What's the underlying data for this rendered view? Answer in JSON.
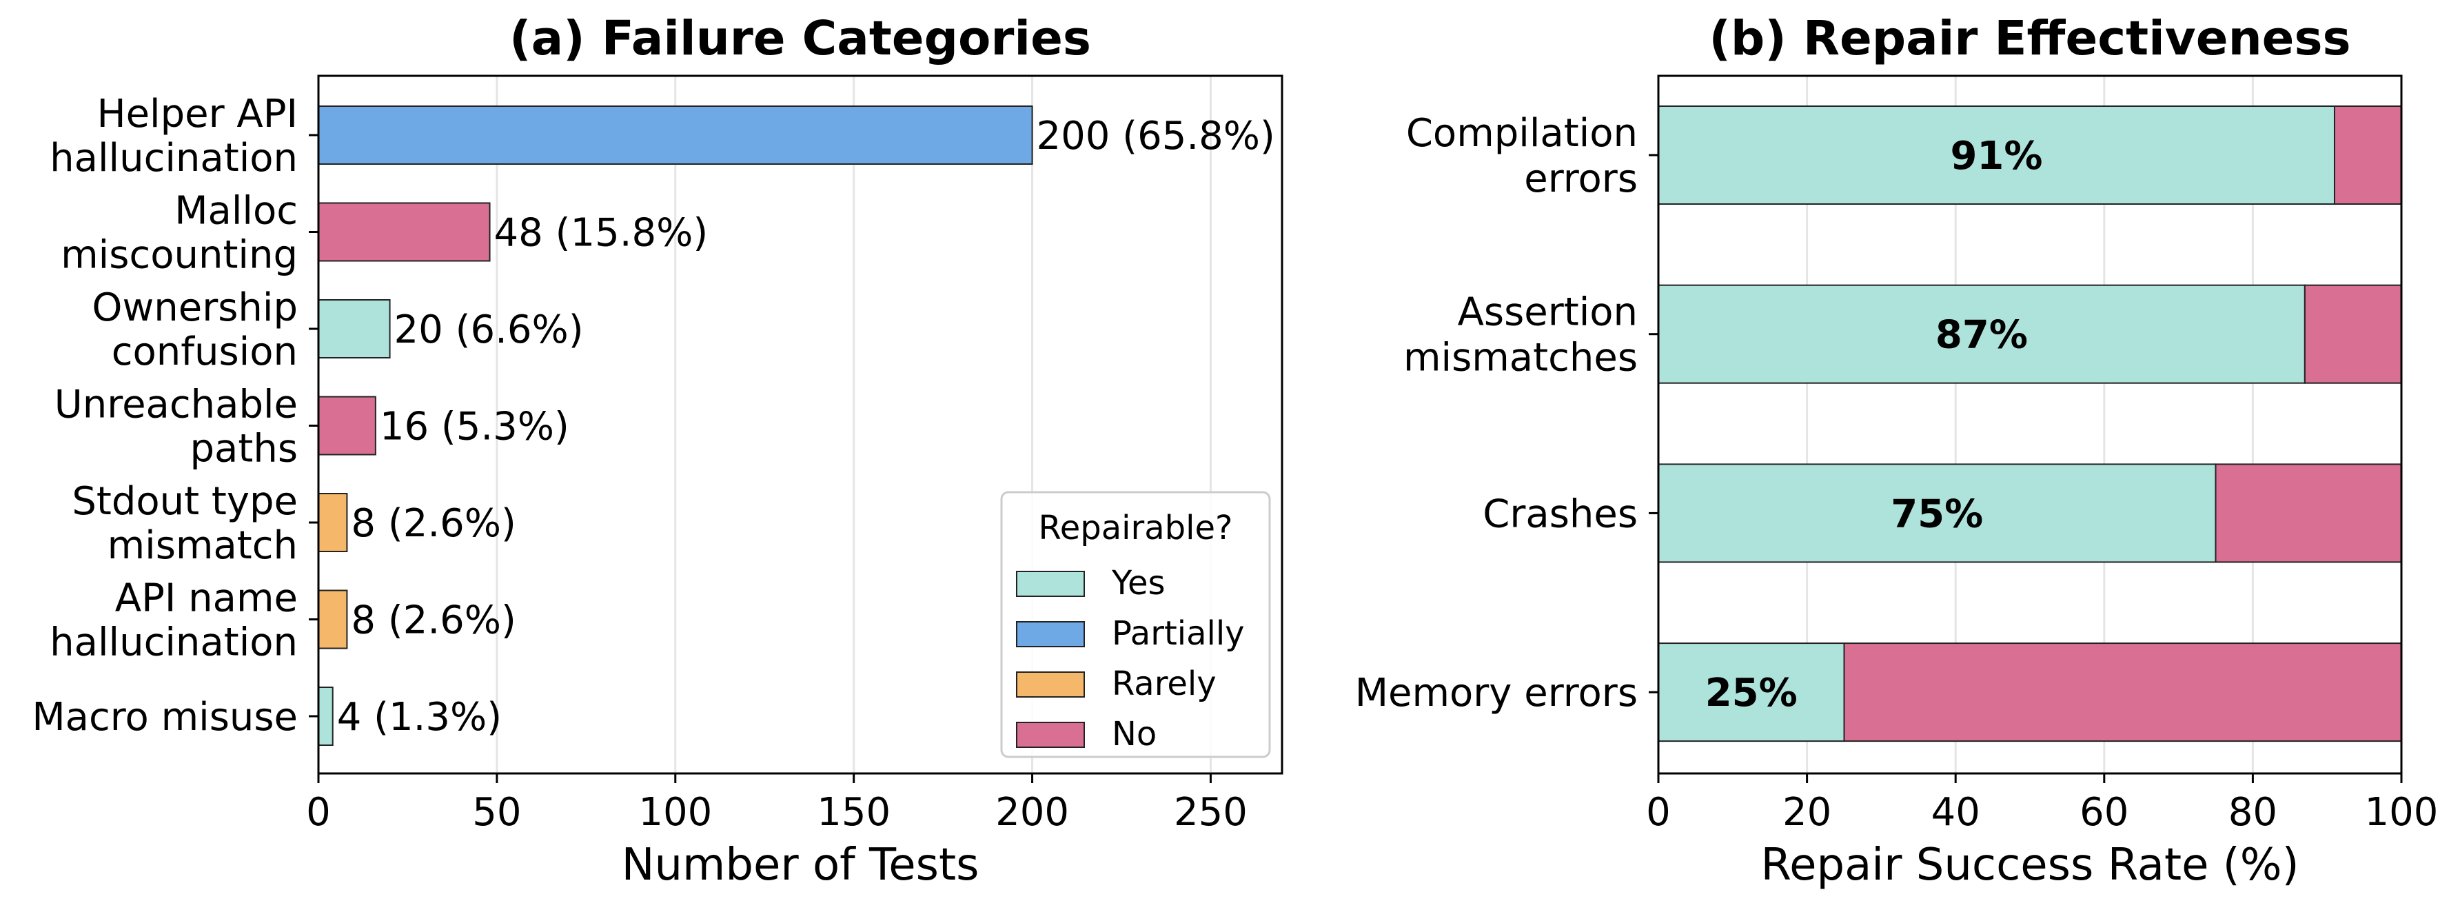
{
  "colors": {
    "Yes": "#aee3dc",
    "Partially": "#6ea8e5",
    "Rarely": "#f5b86a",
    "No": "#d97093",
    "grid": "#e5e5e5",
    "edge": "#222222"
  },
  "chart_data": [
    {
      "type": "bar",
      "orientation": "horizontal",
      "title": "(a) Failure Categories",
      "xlabel": "Number of Tests",
      "ylabel": "",
      "xlim": [
        0,
        270
      ],
      "xticks": [
        0,
        50,
        100,
        150,
        200,
        250
      ],
      "grid": "vertical",
      "categories": [
        [
          "Helper API",
          "hallucination"
        ],
        [
          "Malloc",
          "miscounting"
        ],
        [
          "Ownership",
          "confusion"
        ],
        [
          "Unreachable",
          "paths"
        ],
        [
          "Stdout type",
          "mismatch"
        ],
        [
          "API name",
          "hallucination"
        ],
        [
          "Macro misuse"
        ]
      ],
      "values": [
        200,
        48,
        20,
        16,
        8,
        8,
        4
      ],
      "value_labels": [
        "200  (65.8%)",
        "48  (15.8%)",
        "20  (6.6%)",
        "16  (5.3%)",
        "8  (2.6%)",
        "8  (2.6%)",
        "4  (1.3%)"
      ],
      "repairable": [
        "Partially",
        "No",
        "Yes",
        "No",
        "Rarely",
        "Rarely",
        "Yes"
      ],
      "legend": {
        "title": "Repairable?",
        "placement": "lower-right",
        "entries": [
          "Yes",
          "Partially",
          "Rarely",
          "No"
        ]
      }
    },
    {
      "type": "bar",
      "orientation": "horizontal",
      "stacked": true,
      "title": "(b) Repair Effectiveness",
      "xlabel": "Repair Success Rate (%)",
      "ylabel": "",
      "xlim": [
        0,
        100
      ],
      "xticks": [
        0,
        20,
        40,
        60,
        80,
        100
      ],
      "grid": "vertical",
      "categories": [
        [
          "Compilation",
          "errors"
        ],
        [
          "Assertion",
          "mismatches"
        ],
        [
          "Crashes"
        ],
        [
          "Memory errors"
        ]
      ],
      "series": [
        {
          "values": [
            91,
            87,
            75,
            25
          ],
          "color_key": "Yes"
        },
        {
          "values": [
            9,
            13,
            25,
            75
          ],
          "color_key": "No"
        }
      ],
      "value_labels": [
        "91%",
        "87%",
        "75%",
        "25%"
      ]
    }
  ]
}
